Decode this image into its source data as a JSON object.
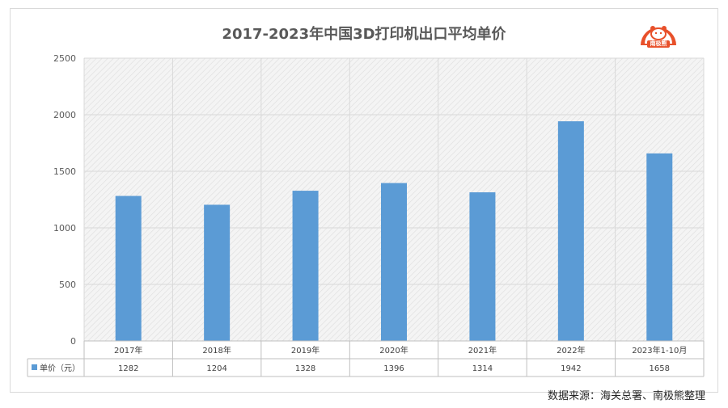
{
  "title": "2017-2023年中国3D打印机出口平均单价",
  "logo": {
    "text": "南极熊",
    "color": "#e8502a"
  },
  "source": "数据来源：海关总署、南极熊整理",
  "chart_data": {
    "type": "bar",
    "title": "2017-2023年中国3D打印机出口平均单价",
    "categories": [
      "2017年",
      "2018年",
      "2019年",
      "2020年",
      "2021年",
      "2022年",
      "2023年1-10月"
    ],
    "series": [
      {
        "name": "单价（元）",
        "values": [
          1282,
          1204,
          1328,
          1396,
          1314,
          1942,
          1658
        ],
        "color": "#5b9bd5"
      }
    ],
    "value_labels": [
      "1282",
      "1204",
      "1328",
      "1396",
      "1314",
      "1942",
      "1658"
    ],
    "ylim": [
      0,
      2500
    ],
    "yticks": [
      0,
      500,
      1000,
      1500,
      2000,
      2500
    ],
    "grid": true,
    "data_table": true,
    "xlabel": "",
    "ylabel": ""
  }
}
